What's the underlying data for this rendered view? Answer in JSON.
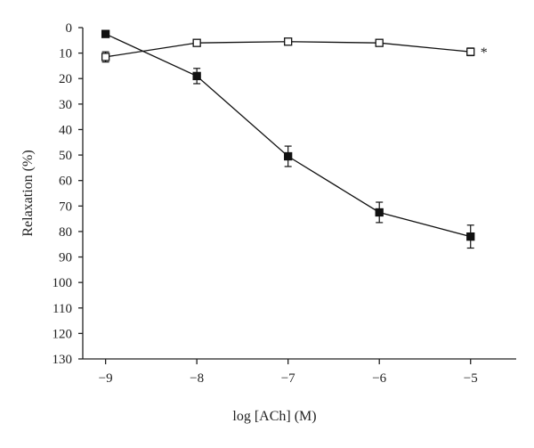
{
  "chart_data": {
    "type": "line",
    "title": "",
    "xlabel": "log [ACh] (M)",
    "ylabel": "Relaxation (%)",
    "x": [
      -9,
      -8,
      -7,
      -6,
      -5
    ],
    "xticks": [
      -9,
      -8,
      -7,
      -6,
      -5
    ],
    "xlim": [
      -9.25,
      -4.5
    ],
    "yticks": [
      0,
      10,
      20,
      30,
      40,
      50,
      60,
      70,
      80,
      90,
      100,
      110,
      120,
      130
    ],
    "ylim": [
      0,
      130
    ],
    "y_inverted": true,
    "grid": false,
    "legend": "none",
    "series": [
      {
        "marker": "filled-square",
        "color": "#111111",
        "values": [
          2.5,
          19,
          50.5,
          72.5,
          82
        ],
        "errors": [
          0,
          3,
          4,
          4,
          4.5
        ]
      },
      {
        "marker": "open-square",
        "color": "#111111",
        "values": [
          11.5,
          6,
          5.5,
          6,
          9.5
        ],
        "errors": [
          2,
          1.2,
          1,
          1,
          1.5
        ]
      }
    ],
    "annotations": [
      {
        "text": "*",
        "series": 1,
        "x": -5
      }
    ]
  }
}
